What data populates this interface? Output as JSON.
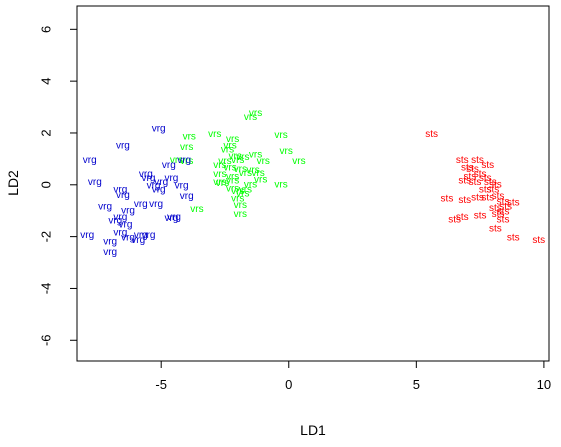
{
  "chart_data": {
    "type": "scatter",
    "title": "",
    "xlabel": "LD1",
    "ylabel": "LD2",
    "xlim": [
      -8.3,
      10.2
    ],
    "ylim": [
      -6.8,
      6.9
    ],
    "xticks": [
      -5,
      0,
      5,
      10
    ],
    "yticks": [
      -6,
      -4,
      -2,
      0,
      2,
      4,
      6
    ],
    "xtick_labels": [
      "-5",
      "0",
      "5",
      "10"
    ],
    "ytick_labels": [
      "-6",
      "-4",
      "-2",
      "0",
      "2",
      "4",
      "6"
    ],
    "grid": false,
    "legend": "none",
    "series": [
      {
        "name": "sts",
        "color": "#ff0000",
        "points": [
          [
            5.6,
            1.95
          ],
          [
            6.8,
            0.95
          ],
          [
            7.4,
            0.95
          ],
          [
            7.0,
            0.65
          ],
          [
            7.2,
            0.6
          ],
          [
            7.8,
            0.75
          ],
          [
            7.1,
            0.3
          ],
          [
            7.5,
            0.4
          ],
          [
            7.3,
            0.1
          ],
          [
            6.9,
            0.15
          ],
          [
            7.7,
            0.25
          ],
          [
            7.9,
            0.1
          ],
          [
            8.1,
            0.0
          ],
          [
            7.7,
            -0.2
          ],
          [
            8.0,
            -0.2
          ],
          [
            7.4,
            -0.5
          ],
          [
            7.8,
            -0.5
          ],
          [
            8.2,
            -0.45
          ],
          [
            6.2,
            -0.55
          ],
          [
            6.9,
            -0.6
          ],
          [
            8.4,
            -0.65
          ],
          [
            8.8,
            -0.7
          ],
          [
            8.1,
            -0.9
          ],
          [
            8.5,
            -0.85
          ],
          [
            8.4,
            -1.05
          ],
          [
            6.8,
            -1.25
          ],
          [
            7.5,
            -1.2
          ],
          [
            8.2,
            -1.15
          ],
          [
            6.5,
            -1.35
          ],
          [
            8.4,
            -1.35
          ],
          [
            8.1,
            -1.7
          ],
          [
            8.8,
            -2.05
          ],
          [
            9.8,
            -2.15
          ]
        ]
      },
      {
        "name": "vrs",
        "color": "#00ff00",
        "points": [
          [
            -1.3,
            2.75
          ],
          [
            -1.5,
            2.6
          ],
          [
            -0.3,
            1.9
          ],
          [
            -3.9,
            1.85
          ],
          [
            -2.9,
            1.95
          ],
          [
            -2.2,
            1.75
          ],
          [
            -4.0,
            1.45
          ],
          [
            -2.3,
            1.5
          ],
          [
            -2.4,
            1.35
          ],
          [
            -0.1,
            1.3
          ],
          [
            -2.1,
            1.1
          ],
          [
            -1.3,
            1.15
          ],
          [
            -1.8,
            1.05
          ],
          [
            -2.5,
            0.9
          ],
          [
            -2.0,
            0.95
          ],
          [
            -1.0,
            0.9
          ],
          [
            0.4,
            0.9
          ],
          [
            -4.4,
            0.95
          ],
          [
            -4.0,
            0.9
          ],
          [
            -2.7,
            0.75
          ],
          [
            -2.3,
            0.65
          ],
          [
            -1.9,
            0.6
          ],
          [
            -1.4,
            0.55
          ],
          [
            -1.7,
            0.45
          ],
          [
            -1.2,
            0.45
          ],
          [
            -2.7,
            0.4
          ],
          [
            -2.2,
            0.3
          ],
          [
            -1.1,
            0.2
          ],
          [
            -2.7,
            0.1
          ],
          [
            -2.6,
            0.05
          ],
          [
            -2.2,
            0.15
          ],
          [
            -1.5,
            0.0
          ],
          [
            -0.3,
            0.0
          ],
          [
            -2.2,
            -0.15
          ],
          [
            -1.7,
            -0.2
          ],
          [
            -2.0,
            -0.25
          ],
          [
            -1.8,
            -0.35
          ],
          [
            -2.0,
            -0.55
          ],
          [
            -1.9,
            -0.8
          ],
          [
            -3.6,
            -0.95
          ],
          [
            -1.9,
            -1.15
          ]
        ]
      },
      {
        "name": "vrg",
        "color": "#0000cc",
        "points": [
          [
            -5.1,
            2.15
          ],
          [
            -6.5,
            1.5
          ],
          [
            -7.8,
            0.95
          ],
          [
            -4.7,
            0.75
          ],
          [
            -4.1,
            0.95
          ],
          [
            -5.6,
            0.4
          ],
          [
            -4.6,
            0.25
          ],
          [
            -7.6,
            0.1
          ],
          [
            -5.5,
            0.25
          ],
          [
            -5.0,
            0.1
          ],
          [
            -5.3,
            -0.05
          ],
          [
            -4.2,
            -0.05
          ],
          [
            -6.6,
            -0.2
          ],
          [
            -5.1,
            -0.2
          ],
          [
            -6.5,
            -0.4
          ],
          [
            -4.0,
            -0.45
          ],
          [
            -5.2,
            -0.75
          ],
          [
            -5.8,
            -0.75
          ],
          [
            -7.2,
            -0.85
          ],
          [
            -6.3,
            -1.0
          ],
          [
            -4.5,
            -1.25
          ],
          [
            -6.6,
            -1.25
          ],
          [
            -6.8,
            -1.4
          ],
          [
            -6.4,
            -1.55
          ],
          [
            -6.6,
            -1.85
          ],
          [
            -5.8,
            -1.95
          ],
          [
            -7.9,
            -1.95
          ],
          [
            -5.5,
            -1.95
          ],
          [
            -7.0,
            -2.2
          ],
          [
            -5.9,
            -2.15
          ],
          [
            -6.3,
            -2.05
          ],
          [
            -7.0,
            -2.6
          ],
          [
            -4.6,
            -1.3
          ]
        ]
      }
    ]
  }
}
